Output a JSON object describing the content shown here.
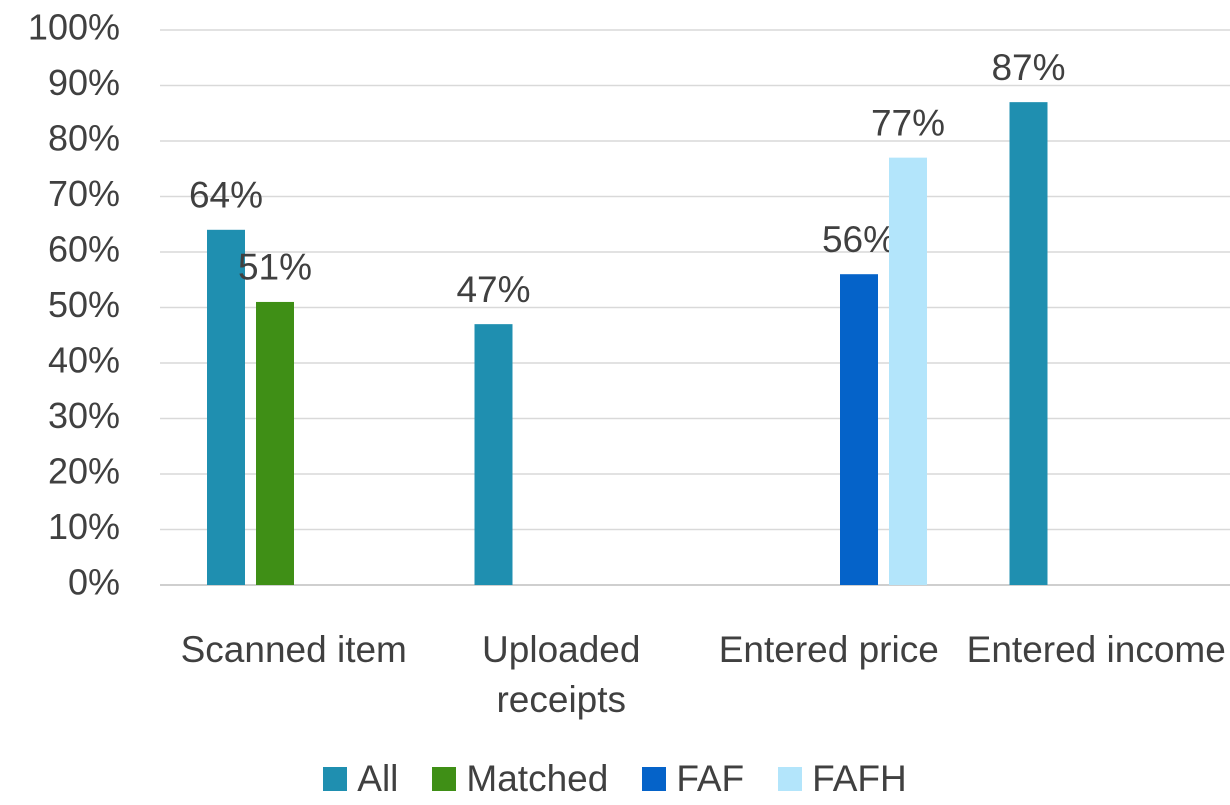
{
  "chart_data": {
    "type": "bar",
    "categories": [
      "Scanned item",
      "Uploaded receipts",
      "Entered price",
      "Entered income"
    ],
    "series": [
      {
        "name": "All",
        "color": "#1f8fb0",
        "values": [
          64,
          47,
          null,
          87
        ],
        "value_labels": [
          "64%",
          "47%",
          null,
          "87%"
        ]
      },
      {
        "name": "Matched",
        "color": "#3f8f16",
        "values": [
          51,
          null,
          null,
          null
        ],
        "value_labels": [
          "51%",
          null,
          null,
          null
        ]
      },
      {
        "name": "FAF",
        "color": "#0563c9",
        "values": [
          null,
          null,
          56,
          null
        ],
        "value_labels": [
          null,
          null,
          "56%",
          null
        ]
      },
      {
        "name": "FAFH",
        "color": "#b3e5fb",
        "values": [
          null,
          null,
          77,
          null
        ],
        "value_labels": [
          null,
          null,
          "77%",
          null
        ]
      }
    ],
    "ylim": [
      0,
      100
    ],
    "yticks": [
      {
        "value": 0,
        "label": "0%"
      },
      {
        "value": 10,
        "label": "10%"
      },
      {
        "value": 20,
        "label": "20%"
      },
      {
        "value": 30,
        "label": "30%"
      },
      {
        "value": 40,
        "label": "40%"
      },
      {
        "value": 50,
        "label": "50%"
      },
      {
        "value": 60,
        "label": "60%"
      },
      {
        "value": 70,
        "label": "70%"
      },
      {
        "value": 80,
        "label": "80%"
      },
      {
        "value": 90,
        "label": "90%"
      },
      {
        "value": 100,
        "label": "100%"
      }
    ],
    "grid": true,
    "legend": "bottom"
  }
}
